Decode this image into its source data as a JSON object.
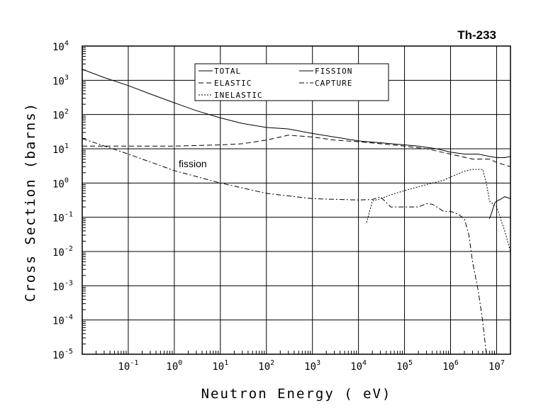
{
  "chart_data": {
    "type": "line",
    "title": "Th-233",
    "xlabel": "Neutron Energy ( eV)",
    "ylabel": "Cross Section (barns)",
    "x_scale": "log",
    "y_scale": "log",
    "xlim": [
      0.01,
      20000000
    ],
    "ylim": [
      1e-05,
      10000
    ],
    "grid": true,
    "x_ticks": [
      {
        "base": "10",
        "exp": "-1",
        "value": 0.1
      },
      {
        "base": "10",
        "exp": "0",
        "value": 1
      },
      {
        "base": "10",
        "exp": "1",
        "value": 10
      },
      {
        "base": "10",
        "exp": "2",
        "value": 100
      },
      {
        "base": "10",
        "exp": "3",
        "value": 1000
      },
      {
        "base": "10",
        "exp": "4",
        "value": 10000
      },
      {
        "base": "10",
        "exp": "5",
        "value": 100000
      },
      {
        "base": "10",
        "exp": "6",
        "value": 1000000
      },
      {
        "base": "10",
        "exp": "7",
        "value": 10000000
      }
    ],
    "y_ticks": [
      {
        "base": "10",
        "exp": "-5",
        "value": 1e-05
      },
      {
        "base": "10",
        "exp": "-4",
        "value": 0.0001
      },
      {
        "base": "10",
        "exp": "-3",
        "value": 0.001
      },
      {
        "base": "10",
        "exp": "-2",
        "value": 0.01
      },
      {
        "base": "10",
        "exp": "-1",
        "value": 0.1
      },
      {
        "base": "10",
        "exp": "0",
        "value": 1
      },
      {
        "base": "10",
        "exp": "1",
        "value": 10
      },
      {
        "base": "10",
        "exp": "2",
        "value": 100
      },
      {
        "base": "10",
        "exp": "3",
        "value": 1000
      },
      {
        "base": "10",
        "exp": "4",
        "value": 10000
      }
    ],
    "annotations": [
      {
        "text": "fission",
        "x": 1.1,
        "y": 3.0
      }
    ],
    "legend": {
      "placement": "top-center",
      "entries": [
        {
          "label": "TOTAL",
          "style": "solid"
        },
        {
          "label": "FISSION",
          "style": "solid"
        },
        {
          "label": "ELASTIC",
          "style": "dashed"
        },
        {
          "label": "CAPTURE",
          "style": "dashdot"
        },
        {
          "label": "INELASTIC",
          "style": "dotted"
        }
      ]
    },
    "series": [
      {
        "name": "TOTAL",
        "style": "solid",
        "points": [
          [
            0.01,
            2100
          ],
          [
            0.03,
            1200
          ],
          [
            0.1,
            700
          ],
          [
            0.3,
            400
          ],
          [
            1,
            220
          ],
          [
            3,
            130
          ],
          [
            10,
            80
          ],
          [
            30,
            55
          ],
          [
            100,
            42
          ],
          [
            300,
            38
          ],
          [
            1000,
            28
          ],
          [
            3000,
            22
          ],
          [
            10000,
            17
          ],
          [
            30000,
            15
          ],
          [
            100000,
            13
          ],
          [
            200000,
            12
          ],
          [
            500000,
            10
          ],
          [
            1000000,
            8
          ],
          [
            2000000,
            7
          ],
          [
            4000000,
            7
          ],
          [
            7000000,
            6
          ],
          [
            10000000,
            5.5
          ],
          [
            15000000,
            5.5
          ],
          [
            20000000,
            6
          ]
        ]
      },
      {
        "name": "ELASTIC",
        "style": "dashed",
        "points": [
          [
            0.01,
            12
          ],
          [
            1,
            12
          ],
          [
            10,
            13
          ],
          [
            30,
            14
          ],
          [
            100,
            18
          ],
          [
            200,
            22
          ],
          [
            300,
            25
          ],
          [
            1000,
            22
          ],
          [
            3000,
            18
          ],
          [
            10000,
            16
          ],
          [
            30000,
            14
          ],
          [
            100000,
            12
          ],
          [
            300000,
            10
          ],
          [
            1000000,
            7
          ],
          [
            3000000,
            5
          ],
          [
            7000000,
            5
          ],
          [
            10000000,
            4
          ],
          [
            20000000,
            3
          ]
        ]
      },
      {
        "name": "CAPTURE",
        "style": "dashdot",
        "points": [
          [
            0.01,
            20
          ],
          [
            0.1,
            7
          ],
          [
            1,
            2.3
          ],
          [
            10,
            1
          ],
          [
            100,
            0.5
          ],
          [
            1000,
            0.35
          ],
          [
            10000,
            0.32
          ],
          [
            20000,
            0.33
          ],
          [
            30000,
            0.4
          ],
          [
            50000,
            0.2
          ],
          [
            100000,
            0.2
          ],
          [
            200000,
            0.2
          ],
          [
            300000,
            0.25
          ],
          [
            400000,
            0.24
          ],
          [
            500000,
            0.2
          ],
          [
            700000,
            0.15
          ],
          [
            1000000,
            0.15
          ],
          [
            1500000,
            0.12
          ],
          [
            2000000,
            0.09
          ],
          [
            2500000,
            0.03
          ],
          [
            3000000,
            0.005
          ],
          [
            4000000,
            0.0007
          ],
          [
            5000000,
            9e-05
          ],
          [
            6000000,
            1e-05
          ]
        ]
      },
      {
        "name": "INELASTIC",
        "style": "dotted",
        "points": [
          [
            15000,
            0.07
          ],
          [
            20000,
            0.3
          ],
          [
            30000,
            0.35
          ],
          [
            50000,
            0.45
          ],
          [
            100000,
            0.6
          ],
          [
            300000,
            0.9
          ],
          [
            700000,
            1.2
          ],
          [
            1000000,
            1.5
          ],
          [
            2000000,
            2.2
          ],
          [
            3000000,
            2.5
          ],
          [
            5000000,
            2.5
          ],
          [
            6000000,
            1.0
          ],
          [
            7000000,
            0.3
          ],
          [
            10000000,
            0.2
          ],
          [
            15000000,
            0.04
          ],
          [
            20000000,
            0.01
          ]
        ]
      },
      {
        "name": "FISSION",
        "style": "solid",
        "points": [
          [
            7000000,
            0.09
          ],
          [
            8000000,
            0.15
          ],
          [
            9000000,
            0.25
          ],
          [
            10000000,
            0.3
          ],
          [
            12000000,
            0.33
          ],
          [
            15000000,
            0.4
          ],
          [
            20000000,
            0.35
          ]
        ]
      }
    ]
  }
}
